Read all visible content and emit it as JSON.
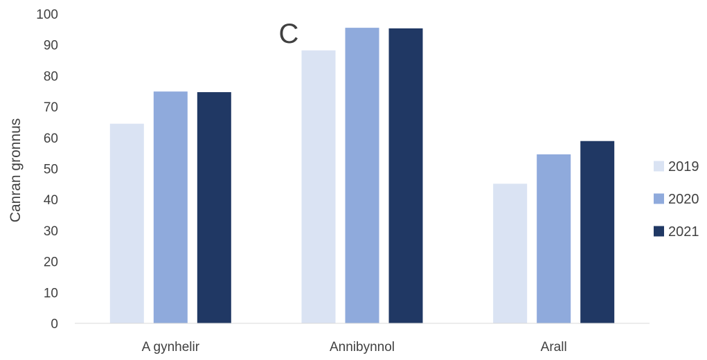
{
  "chart_data": {
    "type": "bar",
    "title": "C",
    "ylabel": "Canran gronnus",
    "xlabel": "",
    "categories": [
      "A gynhelir",
      "Annibynnol",
      "Arall"
    ],
    "series": [
      {
        "name": "2019",
        "values": [
          64.5,
          88.2,
          45.1
        ],
        "color": "#dae3f3"
      },
      {
        "name": "2020",
        "values": [
          74.9,
          95.5,
          54.6
        ],
        "color": "#8faadc"
      },
      {
        "name": "2021",
        "values": [
          74.7,
          95.3,
          58.9
        ],
        "color": "#203864"
      }
    ],
    "ylim": [
      0,
      100
    ],
    "yticks": [
      0,
      10,
      20,
      30,
      40,
      50,
      60,
      70,
      80,
      90,
      100
    ],
    "grid": false,
    "legend_position": "right"
  }
}
